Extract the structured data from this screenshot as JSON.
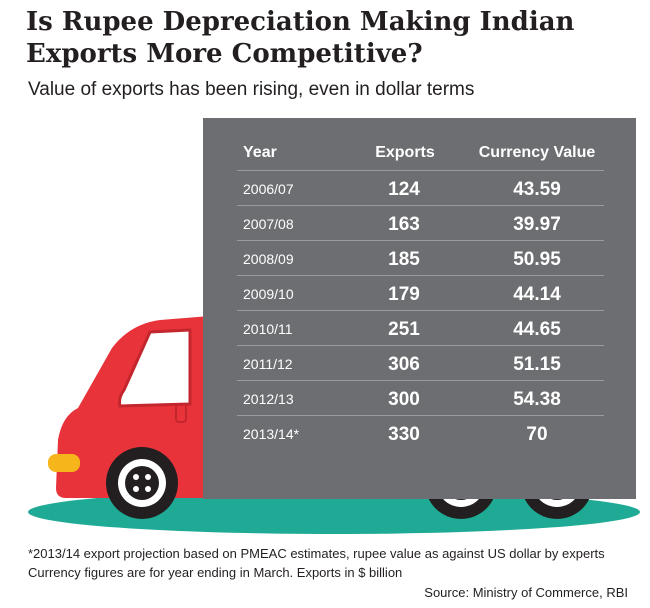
{
  "chart_data": {
    "type": "table",
    "title": "Is Rupee Depreciation Making Indian Exports More Competitive?",
    "subtitle": "Value of exports has been rising, even in dollar terms",
    "columns": [
      "Year",
      "Exports",
      "Currency Value"
    ],
    "rows": [
      {
        "year": "2006/07",
        "exports": "124",
        "currency": "43.59"
      },
      {
        "year": "2007/08",
        "exports": "163",
        "currency": "39.97"
      },
      {
        "year": "2008/09",
        "exports": "185",
        "currency": "50.95"
      },
      {
        "year": "2009/10",
        "exports": "179",
        "currency": "44.14"
      },
      {
        "year": "2010/11",
        "exports": "251",
        "currency": "44.65"
      },
      {
        "year": "2011/12",
        "exports": "306",
        "currency": "51.15"
      },
      {
        "year": "2012/13",
        "exports": "300",
        "currency": "54.38"
      },
      {
        "year": "2013/14*",
        "exports": "330",
        "currency": "70"
      }
    ],
    "footnotes": [
      "*2013/14 export projection based on PMEAC estimates, rupee value as against US dollar by experts",
      "Currency figures are for year ending in March. Exports in $ billion"
    ],
    "source": "Source: Ministry of Commerce, RBI"
  },
  "colors": {
    "panel": "#6d6e71",
    "cab": "#e8333a",
    "cab_dark": "#c3262c",
    "ground": "#1faa96",
    "headlight": "#f7b51c",
    "wheel": "#231f20"
  }
}
